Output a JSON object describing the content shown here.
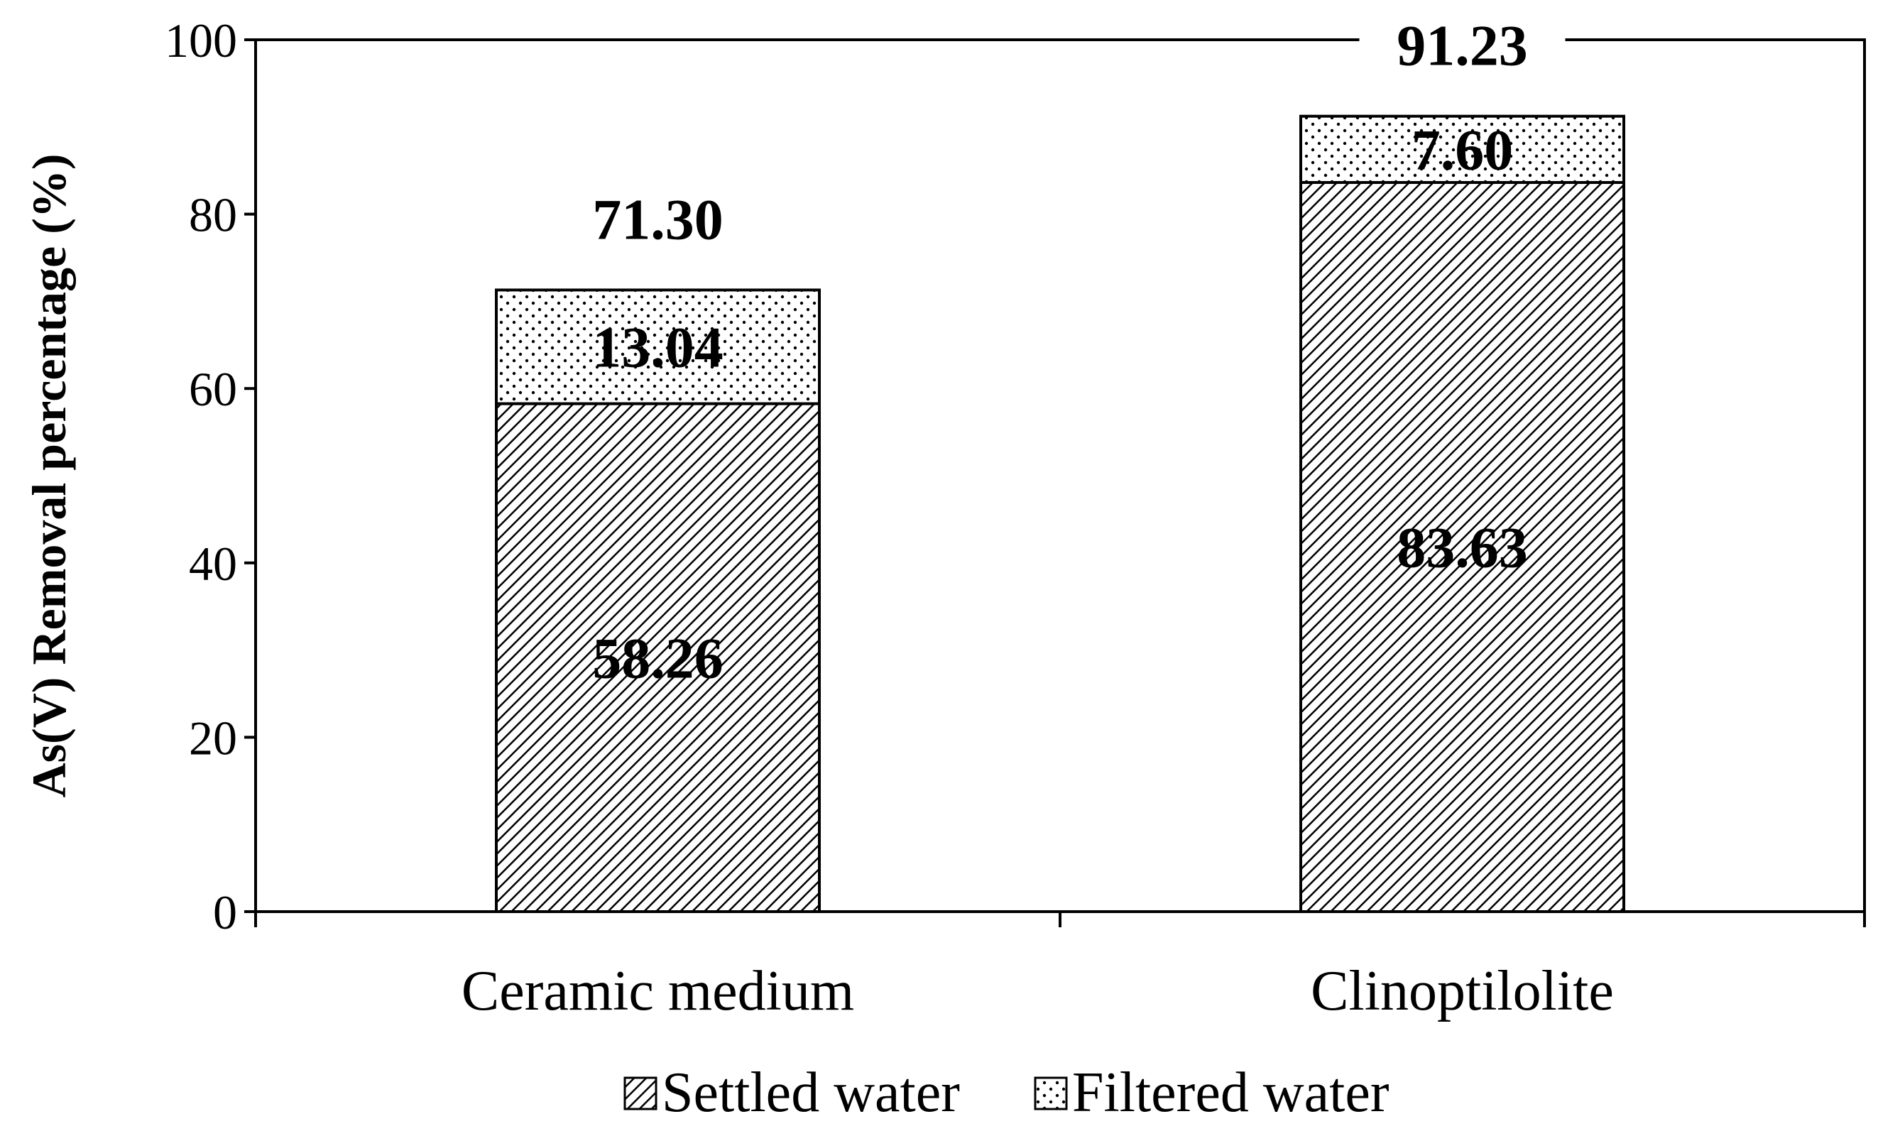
{
  "chart_data": {
    "type": "bar",
    "stacked": true,
    "categories": [
      "Ceramic medium",
      "Clinoptilolite"
    ],
    "series": [
      {
        "name": "Settled water",
        "values": [
          58.26,
          83.63
        ],
        "labels": [
          "58.26",
          "83.63"
        ],
        "pattern": "diagonal-hatch"
      },
      {
        "name": "Filtered water",
        "values": [
          13.04,
          7.6
        ],
        "labels": [
          "13.04",
          "7.60"
        ],
        "pattern": "dots"
      }
    ],
    "totals": [
      71.3,
      91.23
    ],
    "total_labels": [
      "71.30",
      "91.23"
    ],
    "title": "",
    "xlabel": "",
    "ylabel": "As(V) Removal percentage (%)",
    "ylim": [
      0,
      100
    ],
    "yticks": [
      "0",
      "20",
      "40",
      "60",
      "80",
      "100"
    ],
    "grid": false,
    "legend": "bottom"
  }
}
